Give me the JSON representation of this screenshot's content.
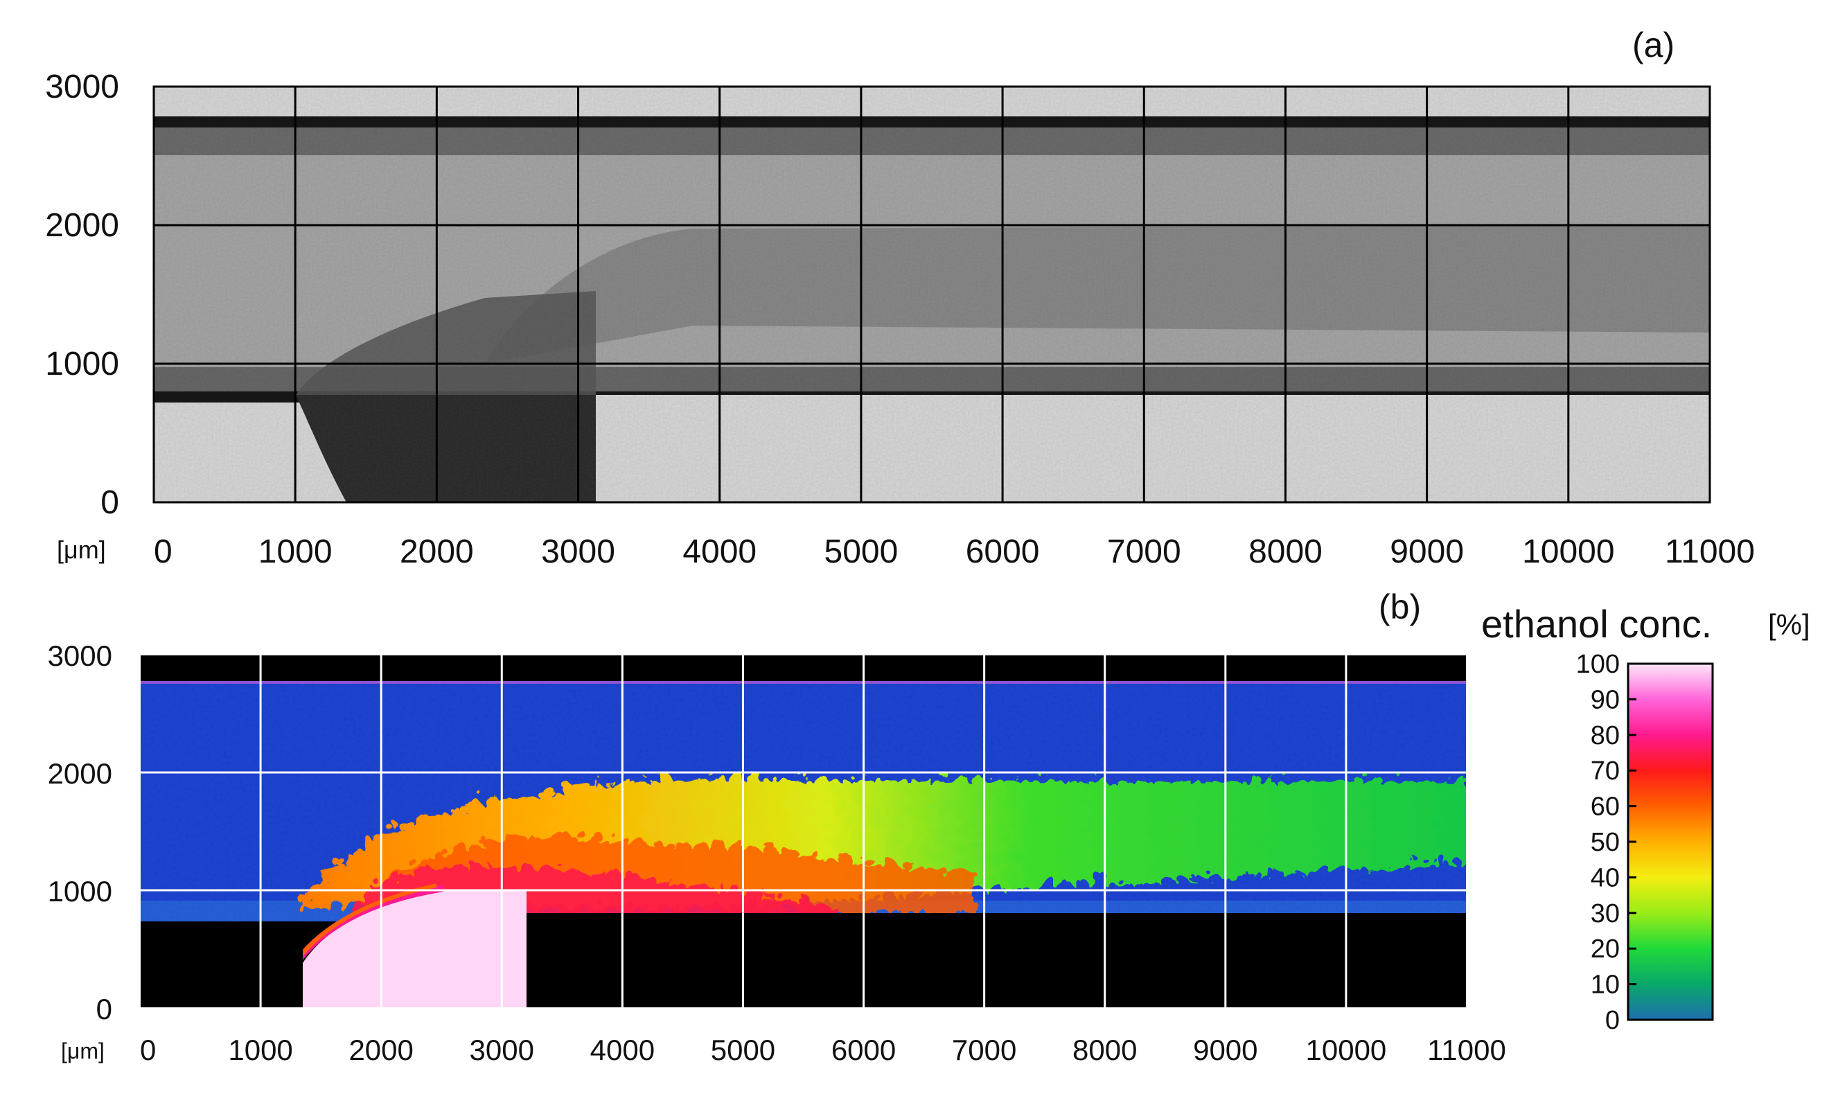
{
  "chart_data": [
    {
      "type": "heatmap",
      "panel_label": "(a)",
      "colormap": "grayscale",
      "x_unit": "[μm]",
      "xlim": [
        0,
        11000
      ],
      "ylim": [
        0,
        3000
      ],
      "x_ticks": [
        "0",
        "1000",
        "2000",
        "3000",
        "4000",
        "5000",
        "6000",
        "7000",
        "8000",
        "9000",
        "10000",
        "11000"
      ],
      "y_ticks": [
        "0",
        "1000",
        "2000",
        "3000"
      ],
      "grid": true,
      "grid_color": "#000000",
      "regions": [
        {
          "name": "background",
          "tone": "light"
        },
        {
          "name": "channel",
          "x": [
            0,
            11000
          ],
          "y": [
            750,
            2750
          ],
          "tone": "mid-gray"
        },
        {
          "name": "inlet",
          "x": [
            1300,
            3000
          ],
          "y": [
            0,
            1000
          ],
          "tone": "dark"
        }
      ]
    },
    {
      "type": "heatmap",
      "panel_label": "(b)",
      "colormap": "rainbow",
      "x_unit": "[μm]",
      "xlim": [
        0,
        11000
      ],
      "ylim": [
        0,
        3000
      ],
      "x_ticks": [
        "0",
        "1000",
        "2000",
        "3000",
        "4000",
        "5000",
        "6000",
        "7000",
        "8000",
        "9000",
        "10000",
        "11000"
      ],
      "y_ticks": [
        "0",
        "1000",
        "2000",
        "3000"
      ],
      "grid": true,
      "grid_color": "#ffffff",
      "colorbar": {
        "title": "ethanol conc.",
        "unit": "[%]",
        "range": [
          0,
          100
        ],
        "ticks": [
          "0",
          "10",
          "20",
          "30",
          "40",
          "50",
          "60",
          "70",
          "80",
          "90",
          "100"
        ],
        "colors": [
          "#1e6fb0",
          "#0aa86a",
          "#1fd93a",
          "#9aec18",
          "#f3ee10",
          "#ffb000",
          "#ff6000",
          "#ff1a1a",
          "#ff1a8e",
          "#ff66d9",
          "#ffe6fa"
        ]
      },
      "regions": [
        {
          "name": "background",
          "tone": "black",
          "concentration": null
        },
        {
          "name": "channel",
          "x": [
            0,
            11000
          ],
          "y": [
            800,
            2750
          ],
          "concentration": 0
        },
        {
          "name": "inlet",
          "x": [
            1300,
            3000
          ],
          "y": [
            0,
            1000
          ],
          "concentration": 100
        },
        {
          "name": "mixing-plume",
          "x": [
            2000,
            11000
          ],
          "y": [
            1000,
            2000
          ],
          "concentration_start": 45,
          "concentration_end": 22
        }
      ]
    }
  ]
}
